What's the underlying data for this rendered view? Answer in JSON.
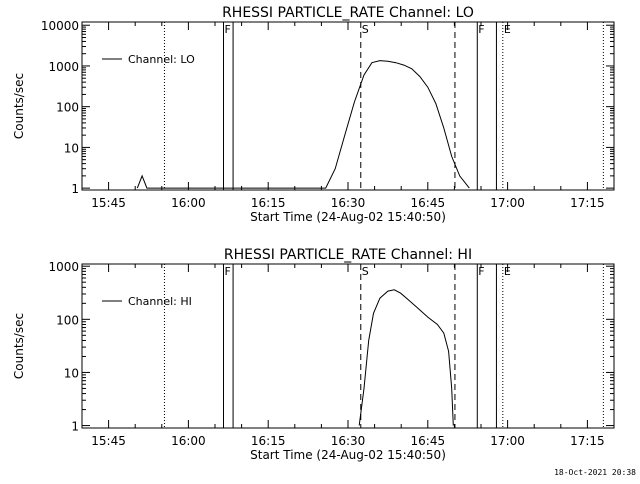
{
  "timestamp": "18-Oct-2021 20:38",
  "chart_data": [
    {
      "type": "line",
      "title": "RHESSI PARTICLE_RATE Channel: LO",
      "xlabel": "Start Time (24-Aug-02 15:40:50)",
      "ylabel": "Counts/sec",
      "yscale": "log",
      "xlim": [
        15.6667,
        17.3333
      ],
      "ylim": [
        0.9,
        12000
      ],
      "xticks": [
        {
          "value": 15.75,
          "label": "15:45"
        },
        {
          "value": 16.0,
          "label": "16:00"
        },
        {
          "value": 16.25,
          "label": "16:15"
        },
        {
          "value": 16.5,
          "label": "16:30"
        },
        {
          "value": 16.75,
          "label": "16:45"
        },
        {
          "value": 17.0,
          "label": "17:00"
        },
        {
          "value": 17.25,
          "label": "17:15"
        }
      ],
      "yticks": [
        {
          "value": 1,
          "label": "1"
        },
        {
          "value": 10,
          "label": "10"
        },
        {
          "value": 100,
          "label": "100"
        },
        {
          "value": 1000,
          "label": "1000"
        },
        {
          "value": 10000,
          "label": "10000"
        }
      ],
      "legend": {
        "position": "top-left",
        "entries": [
          "Channel: LO"
        ]
      },
      "series": [
        {
          "name": "Channel: LO",
          "points": [
            [
              15.84,
              1
            ],
            [
              15.855,
              2.0
            ],
            [
              15.87,
              1
            ],
            [
              16.43,
              1
            ],
            [
              16.46,
              3
            ],
            [
              16.49,
              20
            ],
            [
              16.52,
              130
            ],
            [
              16.55,
              600
            ],
            [
              16.575,
              1200
            ],
            [
              16.6,
              1350
            ],
            [
              16.625,
              1300
            ],
            [
              16.65,
              1200
            ],
            [
              16.675,
              1050
            ],
            [
              16.7,
              850
            ],
            [
              16.725,
              550
            ],
            [
              16.75,
              300
            ],
            [
              16.775,
              120
            ],
            [
              16.8,
              30
            ],
            [
              16.825,
              6
            ],
            [
              16.85,
              2
            ],
            [
              16.88,
              1
            ]
          ]
        }
      ],
      "vlines": [
        {
          "x": 15.925,
          "style": "dotted",
          "label": ""
        },
        {
          "x": 16.11,
          "style": "solid",
          "label": "F"
        },
        {
          "x": 16.14,
          "style": "solid",
          "label": ""
        },
        {
          "x": 16.54,
          "style": "dashed",
          "label": "S"
        },
        {
          "x": 16.835,
          "style": "dashed",
          "label": ""
        },
        {
          "x": 16.905,
          "style": "solid",
          "label": "F"
        },
        {
          "x": 16.965,
          "style": "solid",
          "label": ""
        },
        {
          "x": 16.985,
          "style": "dotted",
          "label": "E"
        },
        {
          "x": 17.3,
          "style": "dotted",
          "label": ""
        }
      ]
    },
    {
      "type": "line",
      "title": "RHESSI PARTICLE_RATE Channel: HI",
      "xlabel": "Start Time (24-Aug-02 15:40:50)",
      "ylabel": "Counts/sec",
      "yscale": "log",
      "xlim": [
        15.6667,
        17.3333
      ],
      "ylim": [
        0.9,
        1100
      ],
      "xticks": [
        {
          "value": 15.75,
          "label": "15:45"
        },
        {
          "value": 16.0,
          "label": "16:00"
        },
        {
          "value": 16.25,
          "label": "16:15"
        },
        {
          "value": 16.5,
          "label": "16:30"
        },
        {
          "value": 16.75,
          "label": "16:45"
        },
        {
          "value": 17.0,
          "label": "17:00"
        },
        {
          "value": 17.25,
          "label": "17:15"
        }
      ],
      "yticks": [
        {
          "value": 1,
          "label": "1"
        },
        {
          "value": 10,
          "label": "10"
        },
        {
          "value": 100,
          "label": "100"
        },
        {
          "value": 1000,
          "label": "1000"
        }
      ],
      "legend": {
        "position": "top-left",
        "entries": [
          "Channel: HI"
        ]
      },
      "series": [
        {
          "name": "Channel: HI",
          "points": [
            [
              16.535,
              1
            ],
            [
              16.55,
              5
            ],
            [
              16.565,
              40
            ],
            [
              16.58,
              130
            ],
            [
              16.6,
              250
            ],
            [
              16.625,
              340
            ],
            [
              16.645,
              360
            ],
            [
              16.665,
              310
            ],
            [
              16.69,
              230
            ],
            [
              16.72,
              160
            ],
            [
              16.75,
              110
            ],
            [
              16.78,
              80
            ],
            [
              16.8,
              55
            ],
            [
              16.815,
              25
            ],
            [
              16.825,
              5
            ],
            [
              16.83,
              1
            ]
          ]
        }
      ],
      "vlines": [
        {
          "x": 15.925,
          "style": "dotted",
          "label": ""
        },
        {
          "x": 16.11,
          "style": "solid",
          "label": "F"
        },
        {
          "x": 16.14,
          "style": "solid",
          "label": ""
        },
        {
          "x": 16.54,
          "style": "dashed",
          "label": "S"
        },
        {
          "x": 16.835,
          "style": "dashed",
          "label": ""
        },
        {
          "x": 16.905,
          "style": "solid",
          "label": "F"
        },
        {
          "x": 16.965,
          "style": "solid",
          "label": ""
        },
        {
          "x": 16.985,
          "style": "dotted",
          "label": "E"
        },
        {
          "x": 17.3,
          "style": "dotted",
          "label": ""
        }
      ]
    }
  ]
}
